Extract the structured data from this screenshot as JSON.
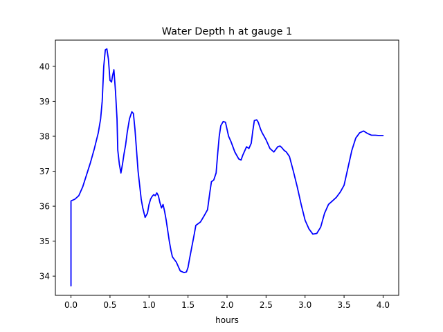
{
  "chart_data": {
    "type": "line",
    "title": "Water Depth h at gauge 1",
    "xlabel": "hours",
    "ylabel": "",
    "xlim": [
      -0.2,
      4.2
    ],
    "ylim": [
      33.45,
      40.75
    ],
    "xticks": [
      0.0,
      0.5,
      1.0,
      1.5,
      2.0,
      2.5,
      3.0,
      3.5,
      4.0
    ],
    "xtick_labels": [
      "0.0",
      "0.5",
      "1.0",
      "1.5",
      "2.0",
      "2.5",
      "3.0",
      "3.5",
      "4.0"
    ],
    "yticks": [
      34,
      35,
      36,
      37,
      38,
      39,
      40
    ],
    "ytick_labels": [
      "34",
      "35",
      "36",
      "37",
      "38",
      "39",
      "40"
    ],
    "grid": false,
    "series": [
      {
        "color": "#0000ff",
        "x": [
          0.0,
          0.0,
          0.05,
          0.1,
          0.15,
          0.2,
          0.25,
          0.3,
          0.35,
          0.38,
          0.4,
          0.42,
          0.44,
          0.46,
          0.48,
          0.5,
          0.52,
          0.53,
          0.55,
          0.57,
          0.59,
          0.6,
          0.62,
          0.64,
          0.66,
          0.68,
          0.7,
          0.72,
          0.75,
          0.78,
          0.8,
          0.82,
          0.84,
          0.86,
          0.88,
          0.9,
          0.92,
          0.95,
          0.98,
          1.0,
          1.02,
          1.04,
          1.06,
          1.08,
          1.1,
          1.12,
          1.14,
          1.16,
          1.18,
          1.2,
          1.22,
          1.24,
          1.26,
          1.28,
          1.3,
          1.35,
          1.4,
          1.45,
          1.48,
          1.5,
          1.52,
          1.55,
          1.58,
          1.6,
          1.63,
          1.66,
          1.7,
          1.75,
          1.78,
          1.8,
          1.83,
          1.86,
          1.88,
          1.9,
          1.92,
          1.95,
          1.98,
          2.0,
          2.02,
          2.05,
          2.1,
          2.15,
          2.18,
          2.2,
          2.22,
          2.25,
          2.28,
          2.31,
          2.33,
          2.35,
          2.38,
          2.4,
          2.43,
          2.45,
          2.5,
          2.55,
          2.6,
          2.65,
          2.68,
          2.7,
          2.73,
          2.76,
          2.8,
          2.85,
          2.9,
          2.95,
          3.0,
          3.05,
          3.1,
          3.15,
          3.2,
          3.25,
          3.3,
          3.35,
          3.4,
          3.45,
          3.5,
          3.55,
          3.6,
          3.65,
          3.7,
          3.75,
          3.8,
          3.85,
          3.9,
          3.95,
          4.0
        ],
        "y": [
          33.72,
          36.15,
          36.2,
          36.3,
          36.55,
          36.9,
          37.25,
          37.65,
          38.1,
          38.5,
          39.0,
          40.0,
          40.47,
          40.5,
          40.2,
          39.6,
          39.55,
          39.7,
          39.9,
          39.3,
          38.5,
          37.6,
          37.2,
          36.95,
          37.2,
          37.5,
          37.75,
          38.1,
          38.5,
          38.7,
          38.65,
          38.2,
          37.6,
          37.0,
          36.6,
          36.2,
          35.95,
          35.68,
          35.8,
          36.05,
          36.2,
          36.28,
          36.33,
          36.3,
          36.38,
          36.3,
          36.1,
          35.95,
          36.05,
          35.85,
          35.6,
          35.3,
          35.0,
          34.75,
          34.55,
          34.4,
          34.15,
          34.1,
          34.12,
          34.25,
          34.5,
          34.85,
          35.2,
          35.45,
          35.5,
          35.55,
          35.7,
          35.9,
          36.4,
          36.7,
          36.75,
          36.95,
          37.5,
          38.0,
          38.3,
          38.42,
          38.4,
          38.2,
          38.0,
          37.85,
          37.55,
          37.35,
          37.32,
          37.45,
          37.55,
          37.7,
          37.65,
          37.8,
          38.15,
          38.45,
          38.47,
          38.4,
          38.2,
          38.1,
          37.9,
          37.65,
          37.55,
          37.7,
          37.72,
          37.68,
          37.6,
          37.55,
          37.42,
          37.0,
          36.55,
          36.05,
          35.6,
          35.35,
          35.2,
          35.22,
          35.4,
          35.8,
          36.05,
          36.15,
          36.25,
          36.4,
          36.6,
          37.1,
          37.6,
          37.95,
          38.1,
          38.15,
          38.08,
          38.03,
          38.03,
          38.02,
          38.02
        ]
      }
    ]
  }
}
